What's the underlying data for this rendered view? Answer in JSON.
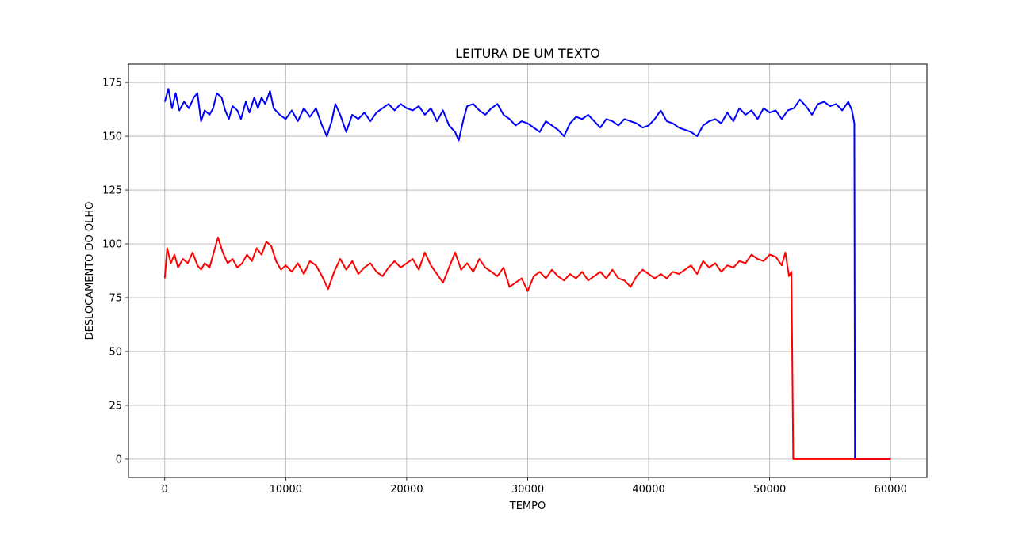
{
  "chart_data": {
    "type": "line",
    "title": "LEITURA DE UM TEXTO",
    "xlabel": "TEMPO",
    "ylabel": "DESLOCAMENTO DO OLHO",
    "xlim": [
      -3000,
      63000
    ],
    "ylim": [
      -8.5,
      183.5
    ],
    "x_ticks": [
      0,
      10000,
      20000,
      30000,
      40000,
      50000,
      60000
    ],
    "y_ticks": [
      0,
      25,
      50,
      75,
      100,
      125,
      150,
      175
    ],
    "x_tick_labels": [
      "0",
      "10000",
      "20000",
      "30000",
      "40000",
      "50000",
      "60000"
    ],
    "y_tick_labels": [
      "0",
      "25",
      "50",
      "75",
      "100",
      "125",
      "150",
      "175"
    ],
    "grid": true,
    "series": [
      {
        "color": "#0000ff",
        "points": [
          [
            0,
            166
          ],
          [
            300,
            172
          ],
          [
            600,
            163
          ],
          [
            900,
            170
          ],
          [
            1200,
            162
          ],
          [
            1600,
            166
          ],
          [
            2000,
            163
          ],
          [
            2400,
            168
          ],
          [
            2700,
            170
          ],
          [
            3000,
            157
          ],
          [
            3300,
            162
          ],
          [
            3700,
            160
          ],
          [
            4000,
            163
          ],
          [
            4300,
            170
          ],
          [
            4700,
            168
          ],
          [
            5000,
            162
          ],
          [
            5300,
            158
          ],
          [
            5600,
            164
          ],
          [
            6000,
            162
          ],
          [
            6300,
            158
          ],
          [
            6700,
            166
          ],
          [
            7000,
            161
          ],
          [
            7400,
            168
          ],
          [
            7700,
            163
          ],
          [
            8000,
            168
          ],
          [
            8300,
            165
          ],
          [
            8700,
            171
          ],
          [
            9000,
            163
          ],
          [
            9500,
            160
          ],
          [
            10000,
            158
          ],
          [
            10500,
            162
          ],
          [
            11000,
            157
          ],
          [
            11500,
            163
          ],
          [
            12000,
            159
          ],
          [
            12500,
            163
          ],
          [
            13000,
            155
          ],
          [
            13400,
            150
          ],
          [
            13800,
            157
          ],
          [
            14100,
            165
          ],
          [
            14500,
            160
          ],
          [
            15000,
            152
          ],
          [
            15500,
            160
          ],
          [
            16000,
            158
          ],
          [
            16500,
            161
          ],
          [
            17000,
            157
          ],
          [
            17500,
            161
          ],
          [
            18000,
            163
          ],
          [
            18500,
            165
          ],
          [
            19000,
            162
          ],
          [
            19500,
            165
          ],
          [
            20000,
            163
          ],
          [
            20500,
            162
          ],
          [
            21000,
            164
          ],
          [
            21500,
            160
          ],
          [
            22000,
            163
          ],
          [
            22500,
            157
          ],
          [
            23000,
            162
          ],
          [
            23500,
            155
          ],
          [
            24000,
            152
          ],
          [
            24300,
            148
          ],
          [
            24700,
            158
          ],
          [
            25000,
            164
          ],
          [
            25500,
            165
          ],
          [
            26000,
            162
          ],
          [
            26500,
            160
          ],
          [
            27000,
            163
          ],
          [
            27500,
            165
          ],
          [
            28000,
            160
          ],
          [
            28500,
            158
          ],
          [
            29000,
            155
          ],
          [
            29500,
            157
          ],
          [
            30000,
            156
          ],
          [
            30500,
            154
          ],
          [
            31000,
            152
          ],
          [
            31500,
            157
          ],
          [
            32000,
            155
          ],
          [
            32500,
            153
          ],
          [
            33000,
            150
          ],
          [
            33500,
            156
          ],
          [
            34000,
            159
          ],
          [
            34500,
            158
          ],
          [
            35000,
            160
          ],
          [
            35500,
            157
          ],
          [
            36000,
            154
          ],
          [
            36500,
            158
          ],
          [
            37000,
            157
          ],
          [
            37500,
            155
          ],
          [
            38000,
            158
          ],
          [
            38500,
            157
          ],
          [
            39000,
            156
          ],
          [
            39500,
            154
          ],
          [
            40000,
            155
          ],
          [
            40500,
            158
          ],
          [
            41000,
            162
          ],
          [
            41500,
            157
          ],
          [
            42000,
            156
          ],
          [
            42500,
            154
          ],
          [
            43000,
            153
          ],
          [
            43500,
            152
          ],
          [
            44000,
            150
          ],
          [
            44500,
            155
          ],
          [
            45000,
            157
          ],
          [
            45500,
            158
          ],
          [
            46000,
            156
          ],
          [
            46500,
            161
          ],
          [
            47000,
            157
          ],
          [
            47500,
            163
          ],
          [
            48000,
            160
          ],
          [
            48500,
            162
          ],
          [
            49000,
            158
          ],
          [
            49500,
            163
          ],
          [
            50000,
            161
          ],
          [
            50500,
            162
          ],
          [
            51000,
            158
          ],
          [
            51500,
            162
          ],
          [
            52000,
            163
          ],
          [
            52500,
            167
          ],
          [
            53000,
            164
          ],
          [
            53500,
            160
          ],
          [
            54000,
            165
          ],
          [
            54500,
            166
          ],
          [
            55000,
            164
          ],
          [
            55500,
            165
          ],
          [
            56000,
            162
          ],
          [
            56500,
            166
          ],
          [
            56800,
            162
          ],
          [
            57000,
            156
          ],
          [
            57050,
            0
          ],
          [
            60000,
            0
          ]
        ]
      },
      {
        "color": "#ff0000",
        "points": [
          [
            0,
            84
          ],
          [
            200,
            98
          ],
          [
            500,
            91
          ],
          [
            800,
            95
          ],
          [
            1100,
            89
          ],
          [
            1500,
            93
          ],
          [
            1900,
            91
          ],
          [
            2300,
            96
          ],
          [
            2700,
            90
          ],
          [
            3000,
            88
          ],
          [
            3300,
            91
          ],
          [
            3700,
            89
          ],
          [
            4000,
            95
          ],
          [
            4400,
            103
          ],
          [
            4800,
            96
          ],
          [
            5200,
            91
          ],
          [
            5600,
            93
          ],
          [
            6000,
            89
          ],
          [
            6400,
            91
          ],
          [
            6800,
            95
          ],
          [
            7200,
            92
          ],
          [
            7600,
            98
          ],
          [
            8000,
            95
          ],
          [
            8400,
            101
          ],
          [
            8800,
            99
          ],
          [
            9200,
            92
          ],
          [
            9600,
            88
          ],
          [
            10000,
            90
          ],
          [
            10500,
            87
          ],
          [
            11000,
            91
          ],
          [
            11500,
            86
          ],
          [
            12000,
            92
          ],
          [
            12500,
            90
          ],
          [
            13000,
            85
          ],
          [
            13500,
            79
          ],
          [
            14000,
            87
          ],
          [
            14500,
            93
          ],
          [
            15000,
            88
          ],
          [
            15500,
            92
          ],
          [
            16000,
            86
          ],
          [
            16500,
            89
          ],
          [
            17000,
            91
          ],
          [
            17500,
            87
          ],
          [
            18000,
            85
          ],
          [
            18500,
            89
          ],
          [
            19000,
            92
          ],
          [
            19500,
            89
          ],
          [
            20000,
            91
          ],
          [
            20500,
            93
          ],
          [
            21000,
            88
          ],
          [
            21500,
            96
          ],
          [
            22000,
            90
          ],
          [
            22500,
            86
          ],
          [
            23000,
            82
          ],
          [
            23500,
            89
          ],
          [
            24000,
            96
          ],
          [
            24500,
            88
          ],
          [
            25000,
            91
          ],
          [
            25500,
            87
          ],
          [
            26000,
            93
          ],
          [
            26500,
            89
          ],
          [
            27000,
            87
          ],
          [
            27500,
            85
          ],
          [
            28000,
            89
          ],
          [
            28500,
            80
          ],
          [
            29000,
            82
          ],
          [
            29500,
            84
          ],
          [
            30000,
            78
          ],
          [
            30500,
            85
          ],
          [
            31000,
            87
          ],
          [
            31500,
            84
          ],
          [
            32000,
            88
          ],
          [
            32500,
            85
          ],
          [
            33000,
            83
          ],
          [
            33500,
            86
          ],
          [
            34000,
            84
          ],
          [
            34500,
            87
          ],
          [
            35000,
            83
          ],
          [
            35500,
            85
          ],
          [
            36000,
            87
          ],
          [
            36500,
            84
          ],
          [
            37000,
            88
          ],
          [
            37500,
            84
          ],
          [
            38000,
            83
          ],
          [
            38500,
            80
          ],
          [
            39000,
            85
          ],
          [
            39500,
            88
          ],
          [
            40000,
            86
          ],
          [
            40500,
            84
          ],
          [
            41000,
            86
          ],
          [
            41500,
            84
          ],
          [
            42000,
            87
          ],
          [
            42500,
            86
          ],
          [
            43000,
            88
          ],
          [
            43500,
            90
          ],
          [
            44000,
            86
          ],
          [
            44500,
            92
          ],
          [
            45000,
            89
          ],
          [
            45500,
            91
          ],
          [
            46000,
            87
          ],
          [
            46500,
            90
          ],
          [
            47000,
            89
          ],
          [
            47500,
            92
          ],
          [
            48000,
            91
          ],
          [
            48500,
            95
          ],
          [
            49000,
            93
          ],
          [
            49500,
            92
          ],
          [
            50000,
            95
          ],
          [
            50500,
            94
          ],
          [
            51000,
            90
          ],
          [
            51300,
            96
          ],
          [
            51600,
            85
          ],
          [
            51800,
            87
          ],
          [
            51950,
            0
          ],
          [
            60000,
            0
          ]
        ]
      }
    ]
  }
}
